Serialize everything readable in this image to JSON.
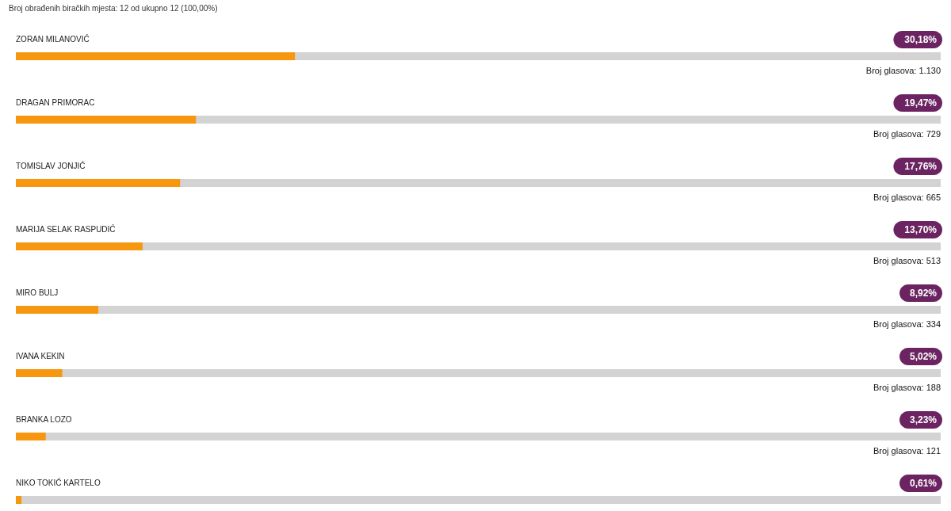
{
  "chart_data": {
    "type": "bar",
    "orientation": "horizontal",
    "subtitle": "Broj obrađenih biračkih mjesta: 12 od ukupno 12 (100,00%)",
    "categories": [
      "ZORAN MILANOVIĆ",
      "DRAGAN PRIMORAC",
      "TOMISLAV JONJIĆ",
      "MARIJA SELAK RASPUDIĆ",
      "MIRO BULJ",
      "IVANA KEKIN",
      "BRANKA LOZO",
      "NIKO TOKIĆ KARTELO"
    ],
    "values": [
      30.18,
      19.47,
      17.76,
      13.7,
      8.92,
      5.02,
      3.23,
      0.61
    ],
    "value_labels": [
      "30,18%",
      "19,47%",
      "17,76%",
      "13,70%",
      "8,92%",
      "5,02%",
      "3,23%",
      "0,61%"
    ],
    "color": "#f7960f",
    "xlim": [
      0,
      100
    ],
    "annotations": [
      "Broj glasova: 1.130",
      "Broj glasova: 729",
      "Broj glasova: 665",
      "Broj glasova: 513",
      "Broj glasova: 334",
      "Broj glasova: 188",
      "Broj glasova: 121"
    ]
  }
}
